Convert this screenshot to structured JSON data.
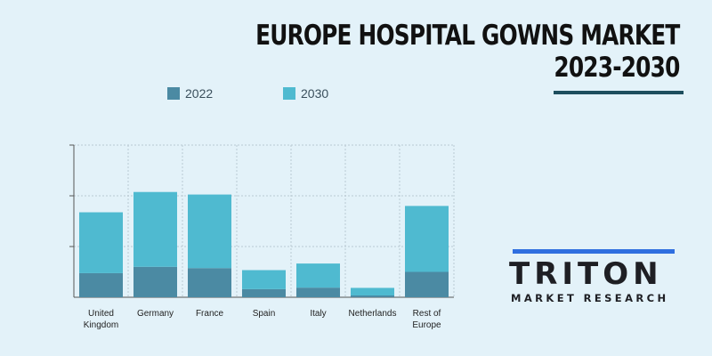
{
  "title": {
    "line1": "EUROPE HOSPITAL GOWNS MARKET",
    "line2": "2023-2030"
  },
  "legend": [
    {
      "label": "2022",
      "color": "#4b8aa3"
    },
    {
      "label": "2030",
      "color": "#4fbad0"
    }
  ],
  "logo": {
    "word": "TRITON",
    "sub": "MARKET RESEARCH",
    "accent_color": "#2f6fe0"
  },
  "chart_data": {
    "type": "bar",
    "stacked": true,
    "categories": [
      "United\nKingdom",
      "Germany",
      "France",
      "Spain",
      "Italy",
      "Netherlands",
      "Rest of\nEurope"
    ],
    "series": [
      {
        "name": "2022",
        "values": [
          0.95,
          1.2,
          1.15,
          0.32,
          0.38,
          0.07,
          1.0
        ],
        "color": "#4b8aa3"
      },
      {
        "name": "2030",
        "values": [
          2.4,
          2.95,
          2.9,
          0.75,
          0.95,
          0.3,
          2.6
        ],
        "color": "#4fbad0"
      }
    ],
    "ylim": [
      0,
      6
    ],
    "yticks": [
      0,
      2,
      4,
      6
    ],
    "show_ytick_labels": false,
    "grid": true,
    "legend_position": "top-left"
  }
}
